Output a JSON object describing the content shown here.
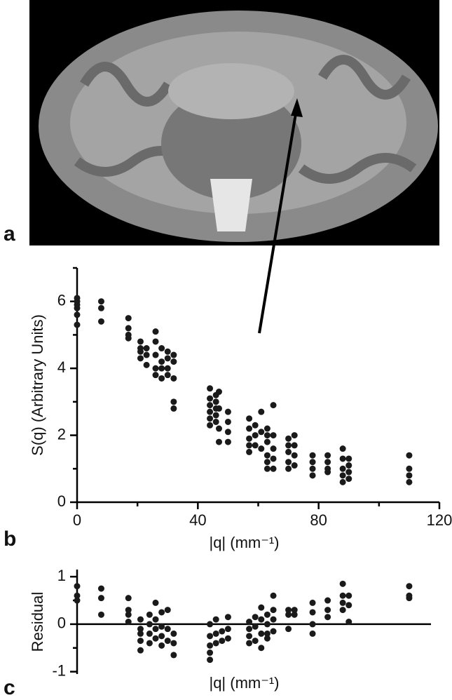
{
  "image_panel": "a",
  "chart_data": [
    {
      "type": "scatter",
      "panel": "b",
      "y_label": "S(q) (Arbitrary Units)",
      "x_label": "|q| (mm⁻¹)",
      "color": "#1a1a1a",
      "xlim": [
        0,
        120
      ],
      "xticks": [
        0,
        40,
        80,
        120
      ],
      "minor_xticks": [
        20,
        60,
        100
      ],
      "ylim": [
        0,
        7
      ],
      "yticks": [
        0,
        2,
        4,
        6
      ],
      "minor_yticks": [
        1,
        3,
        5,
        7
      ],
      "x": [
        0,
        0,
        0,
        0,
        0,
        0,
        8,
        8,
        8,
        17,
        17,
        17,
        17,
        21,
        21,
        21,
        21,
        23,
        23,
        23,
        26,
        26,
        26,
        26,
        26,
        28,
        28,
        28,
        28,
        30,
        30,
        30,
        30,
        32,
        32,
        32,
        32,
        32,
        44,
        44,
        44,
        44,
        44,
        44,
        46,
        46,
        46,
        46,
        46,
        47,
        47,
        47,
        47,
        50,
        50,
        50,
        50,
        57,
        57,
        57,
        57,
        57,
        59,
        59,
        59,
        61,
        61,
        61,
        63,
        63,
        63,
        63,
        63,
        63,
        65,
        65,
        65,
        65,
        65,
        70,
        70,
        70,
        70,
        70,
        72,
        72,
        72,
        72,
        78,
        78,
        78,
        78,
        83,
        83,
        83,
        83,
        88,
        88,
        88,
        88,
        88,
        90,
        90,
        90,
        90,
        110,
        110,
        110,
        110
      ],
      "y": [
        6.1,
        6.0,
        5.9,
        5.8,
        5.6,
        5.3,
        6.0,
        5.8,
        5.4,
        5.5,
        5.2,
        5.0,
        4.9,
        4.8,
        4.6,
        4.5,
        4.3,
        4.6,
        4.4,
        4.1,
        5.1,
        4.8,
        4.4,
        4.0,
        3.8,
        4.6,
        4.2,
        4.0,
        3.7,
        4.5,
        4.3,
        4.0,
        3.8,
        4.4,
        4.2,
        3.7,
        3.0,
        2.8,
        3.4,
        3.1,
        2.9,
        2.7,
        2.5,
        2.3,
        3.2,
        3.0,
        2.8,
        2.6,
        2.4,
        3.3,
        2.8,
        2.2,
        1.8,
        2.7,
        2.4,
        2.1,
        1.8,
        2.5,
        2.2,
        1.9,
        1.7,
        1.5,
        2.3,
        2.0,
        1.7,
        2.7,
        2.1,
        1.6,
        2.2,
        2.0,
        1.8,
        1.4,
        1.2,
        1.0,
        2.9,
        2.0,
        1.6,
        1.3,
        1.0,
        1.9,
        1.7,
        1.5,
        1.2,
        1.0,
        2.0,
        1.7,
        1.4,
        1.1,
        1.4,
        1.2,
        1.0,
        0.8,
        1.4,
        1.2,
        1.0,
        0.9,
        1.6,
        1.3,
        1.0,
        0.8,
        0.6,
        1.3,
        1.1,
        0.9,
        0.7,
        1.4,
        1.0,
        0.8,
        0.6
      ]
    },
    {
      "type": "scatter",
      "panel": "c",
      "y_label": "Residual",
      "x_label": "|q| (mm⁻¹)",
      "color": "#1a1a1a",
      "xlim": [
        0,
        120
      ],
      "ylim": [
        -1.05,
        1.15
      ],
      "yticks": [
        -1,
        0,
        1
      ],
      "minor_yticks": [
        -0.5,
        0.5
      ],
      "x": [
        0,
        0,
        0,
        8,
        8,
        8,
        17,
        17,
        17,
        17,
        21,
        21,
        21,
        21,
        21,
        24,
        24,
        24,
        24,
        26,
        26,
        26,
        26,
        28,
        28,
        28,
        28,
        30,
        30,
        30,
        32,
        32,
        32,
        44,
        44,
        44,
        44,
        44,
        46,
        46,
        46,
        48,
        48,
        50,
        50,
        50,
        57,
        57,
        57,
        57,
        59,
        59,
        59,
        61,
        61,
        61,
        61,
        63,
        63,
        63,
        63,
        65,
        65,
        65,
        65,
        70,
        70,
        70,
        72,
        72,
        78,
        78,
        78,
        78,
        83,
        83,
        83,
        88,
        88,
        88,
        88,
        90,
        90,
        90,
        110,
        110,
        110
      ],
      "y": [
        0.8,
        0.6,
        0.5,
        0.75,
        0.55,
        0.2,
        0.55,
        0.3,
        0.2,
        0.05,
        0.1,
        -0.1,
        -0.2,
        -0.35,
        -0.55,
        0.2,
        0,
        -0.2,
        -0.4,
        0.45,
        0.1,
        -0.1,
        -0.3,
        0.25,
        -0.05,
        -0.25,
        -0.45,
        0.3,
        -0.1,
        -0.35,
        -0.2,
        -0.4,
        -0.65,
        0,
        -0.25,
        -0.45,
        -0.6,
        -0.75,
        0.1,
        -0.2,
        -0.4,
        -0.15,
        -0.35,
        0.15,
        -0.1,
        -0.3,
        0.05,
        -0.1,
        -0.25,
        -0.4,
        0.15,
        -0.05,
        -0.35,
        0.35,
        0.1,
        -0.2,
        -0.5,
        0.2,
        0,
        -0.2,
        -0.3,
        0.6,
        0.3,
        0.1,
        -0.15,
        0.3,
        0.2,
        -0.1,
        0.3,
        0.2,
        0.45,
        0.25,
        0,
        -0.2,
        0.5,
        0.3,
        0.15,
        0.85,
        0.6,
        0.45,
        0.3,
        0.6,
        0.4,
        0.05,
        0.8,
        0.6,
        0.55
      ]
    }
  ]
}
